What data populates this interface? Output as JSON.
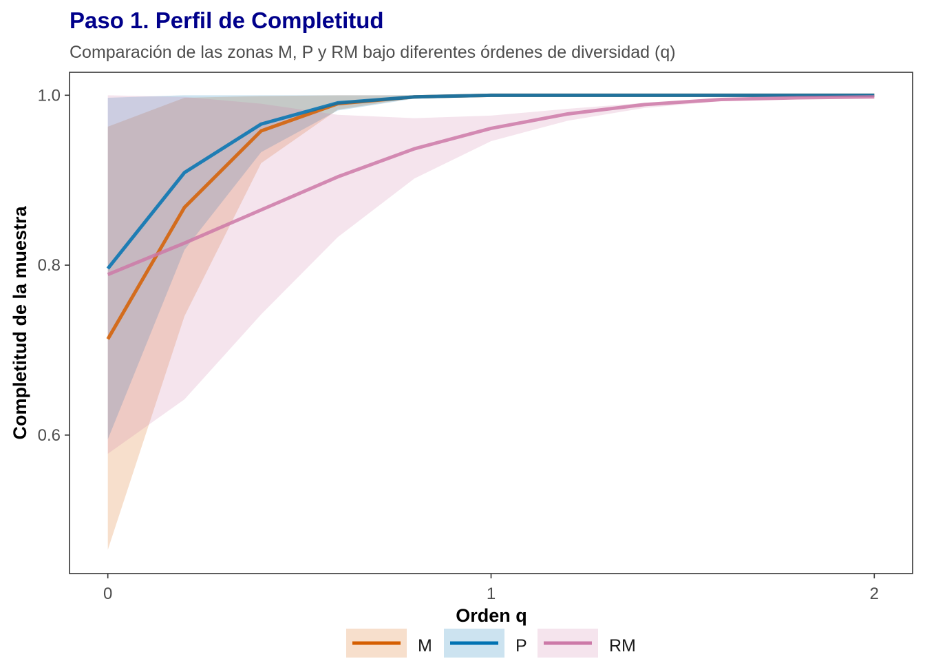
{
  "chart_data": {
    "type": "line",
    "title": "Paso 1. Perfil de Completitud",
    "subtitle": "Comparación de las zonas M, P y RM bajo diferentes órdenes de diversidad (q)",
    "xlabel": "Orden q",
    "ylabel": "Completitud de la muestra",
    "xlim": [
      -0.1,
      2.1
    ],
    "ylim": [
      0.437,
      1.027
    ],
    "x_ticks": [
      {
        "value": 0,
        "label": "0"
      },
      {
        "value": 1,
        "label": "1"
      },
      {
        "value": 2,
        "label": "2"
      }
    ],
    "y_ticks": [
      {
        "value": 0.6,
        "label": "0.6"
      },
      {
        "value": 0.8,
        "label": "0.8"
      },
      {
        "value": 1.0,
        "label": "1.0"
      }
    ],
    "grid": false,
    "legend_position": "bottom",
    "colors": {
      "title": "#00008b",
      "M": "#d55e00",
      "P": "#0072b2",
      "RM": "#cc79a7"
    },
    "series": [
      {
        "name": "M",
        "color": "#d55e00",
        "x": [
          0,
          0.2,
          0.4,
          0.6,
          0.8,
          1.0,
          1.2,
          1.4,
          1.6,
          1.8,
          2.0
        ],
        "y": [
          0.713,
          0.868,
          0.958,
          0.99,
          0.998,
          1.0,
          1.0,
          1.0,
          1.0,
          1.0,
          1.0
        ],
        "lower": [
          0.465,
          0.74,
          0.92,
          0.983,
          0.997,
          1.0,
          1.0,
          1.0,
          1.0,
          1.0,
          1.0
        ],
        "upper": [
          0.963,
          0.997,
          0.999,
          1.0,
          1.0,
          1.0,
          1.0,
          1.0,
          1.0,
          1.0,
          1.0
        ]
      },
      {
        "name": "P",
        "color": "#0072b2",
        "x": [
          0,
          0.2,
          0.4,
          0.6,
          0.8,
          1.0,
          1.2,
          1.4,
          1.6,
          1.8,
          2.0
        ],
        "y": [
          0.796,
          0.909,
          0.966,
          0.991,
          0.998,
          1.0,
          1.0,
          1.0,
          1.0,
          1.0,
          1.0
        ],
        "lower": [
          0.595,
          0.818,
          0.933,
          0.982,
          0.996,
          1.0,
          1.0,
          1.0,
          1.0,
          1.0,
          1.0
        ],
        "upper": [
          0.997,
          1.0,
          1.0,
          1.0,
          1.0,
          1.0,
          1.0,
          1.0,
          1.0,
          1.0,
          1.0
        ]
      },
      {
        "name": "RM",
        "color": "#cc79a7",
        "x": [
          0,
          0.2,
          0.4,
          0.6,
          0.8,
          1.0,
          1.2,
          1.4,
          1.6,
          1.8,
          2.0
        ],
        "y": [
          0.789,
          0.826,
          0.865,
          0.904,
          0.937,
          0.961,
          0.978,
          0.989,
          0.995,
          0.997,
          0.998
        ],
        "lower": [
          0.578,
          0.642,
          0.742,
          0.833,
          0.902,
          0.946,
          0.97,
          0.985,
          0.993,
          0.996,
          0.997
        ],
        "upper": [
          1.0,
          0.998,
          0.99,
          0.977,
          0.973,
          0.976,
          0.984,
          0.991,
          0.996,
          0.998,
          0.999
        ]
      }
    ]
  }
}
